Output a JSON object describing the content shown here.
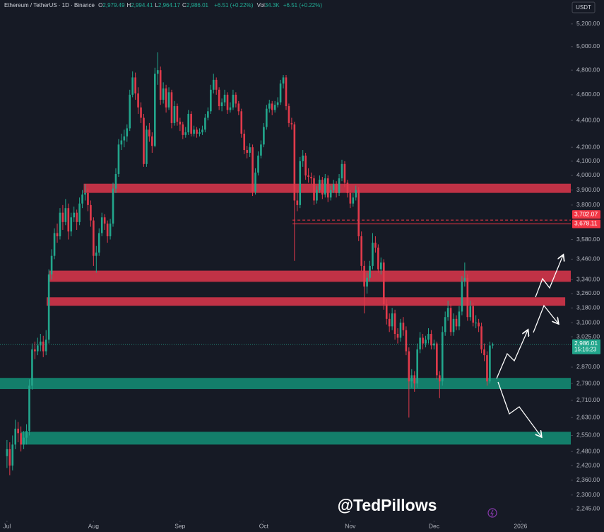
{
  "chart_data": {
    "type": "candlestick",
    "header": {
      "symbol": "Ethereum / TetherUS · 1D · Binance",
      "fields": [
        {
          "key": "O",
          "value": "2,979.49"
        },
        {
          "key": "H",
          "value": "2,994.41"
        },
        {
          "key": "L",
          "value": "2,964.17"
        },
        {
          "key": "C",
          "value": "2,986.01"
        }
      ],
      "change": "+6.51 (+0.22%)",
      "volume": {
        "key": "Vol",
        "value": "34.3K"
      },
      "volume_change": "+6.51 (+0.22%)"
    },
    "currency": "USDT",
    "watermark": "@TedPillows",
    "countdown": "15:16:23",
    "last_label": "2,986.01",
    "log_scale": true,
    "grid": false,
    "up_color": "#22a68c",
    "down_color": "#e13a4b",
    "xlim": [
      -2.5,
      202
    ],
    "xticks": [
      {
        "value": 0,
        "label": "Jul"
      },
      {
        "value": 31,
        "label": "Aug"
      },
      {
        "value": 62,
        "label": "Sep"
      },
      {
        "value": 92,
        "label": "Oct"
      },
      {
        "value": 123,
        "label": "Nov"
      },
      {
        "value": 153,
        "label": "Dec"
      },
      {
        "value": 184,
        "label": "2026"
      }
    ],
    "ylim": [
      2200,
      5420
    ],
    "yticks": [
      {
        "value": 5200,
        "label": "5,200.00"
      },
      {
        "value": 5000,
        "label": "5,000.00"
      },
      {
        "value": 4800,
        "label": "4,800.00"
      },
      {
        "value": 4600,
        "label": "4,600.00"
      },
      {
        "value": 4400,
        "label": "4,400.00"
      },
      {
        "value": 4200,
        "label": "4,200.00"
      },
      {
        "value": 4100,
        "label": "4,100.00"
      },
      {
        "value": 4000,
        "label": "4,000.00"
      },
      {
        "value": 3900,
        "label": "3,900.00"
      },
      {
        "value": 3800,
        "label": "3,800.00"
      },
      {
        "value": 3580,
        "label": "3,580.00"
      },
      {
        "value": 3460,
        "label": "3,460.00"
      },
      {
        "value": 3340,
        "label": "3,340.00"
      },
      {
        "value": 3260,
        "label": "3,260.00"
      },
      {
        "value": 3180,
        "label": "3,180.00"
      },
      {
        "value": 3100,
        "label": "3,100.00"
      },
      {
        "value": 3025,
        "label": "3,025.00"
      },
      {
        "value": 2870,
        "label": "2,870.00"
      },
      {
        "value": 2790,
        "label": "2,790.00"
      },
      {
        "value": 2710,
        "label": "2,710.00"
      },
      {
        "value": 2630,
        "label": "2,630.00"
      },
      {
        "value": 2550,
        "label": "2,550.00"
      },
      {
        "value": 2480,
        "label": "2,480.00"
      },
      {
        "value": 2420,
        "label": "2,420.00"
      },
      {
        "value": 2360,
        "label": "2,360.00"
      },
      {
        "value": 2300,
        "label": "2,300.00"
      },
      {
        "value": 2245,
        "label": "2,245.00"
      }
    ],
    "zones": [
      {
        "low": 3881,
        "high": 3943,
        "from": 27.5,
        "to": 202,
        "color": "#d3354a"
      },
      {
        "low": 3327,
        "high": 3392,
        "from": 15.2,
        "to": 202,
        "color": "#d3354a"
      },
      {
        "low": 3192,
        "high": 3239,
        "from": 14.2,
        "to": 200,
        "color": "#d3354a"
      },
      {
        "low": 2763,
        "high": 2817,
        "from": -2.5,
        "to": 202,
        "color": "#138a72"
      },
      {
        "low": 2510,
        "high": 2566,
        "from": 5,
        "to": 202,
        "color": "#138a72"
      }
    ],
    "levels": [
      {
        "value": 3702.07,
        "label": "3,702.07",
        "style": "dashed",
        "from": 102.3,
        "to": 202,
        "color": "#f23645"
      },
      {
        "value": 3678.11,
        "label": "3,678.11",
        "style": "solid",
        "from": 102.3,
        "to": 202,
        "color": "#f23645"
      }
    ],
    "candles": [
      [
        2460,
        2530,
        2410,
        2490
      ],
      [
        2490,
        2520,
        2380,
        2420
      ],
      [
        2420,
        2550,
        2400,
        2510
      ],
      [
        2510,
        2620,
        2490,
        2580
      ],
      [
        2580,
        2610,
        2520,
        2560
      ],
      [
        2560,
        2590,
        2480,
        2510
      ],
      [
        2510,
        2570,
        2490,
        2540
      ],
      [
        2540,
        2600,
        2510,
        2570
      ],
      [
        2570,
        2810,
        2550,
        2780
      ],
      [
        2780,
        2990,
        2760,
        2960
      ],
      [
        2960,
        3000,
        2910,
        2950
      ],
      [
        2950,
        3020,
        2930,
        2980
      ],
      [
        2980,
        3040,
        2950,
        3000
      ],
      [
        3000,
        3030,
        2920,
        2950
      ],
      [
        2950,
        3060,
        2930,
        3010
      ],
      [
        3010,
        3400,
        2990,
        3370
      ],
      [
        3370,
        3520,
        3340,
        3480
      ],
      [
        3480,
        3650,
        3460,
        3620
      ],
      [
        3620,
        3680,
        3560,
        3600
      ],
      [
        3600,
        3780,
        3580,
        3750
      ],
      [
        3750,
        3800,
        3640,
        3690
      ],
      [
        3690,
        3840,
        3670,
        3780
      ],
      [
        3780,
        3810,
        3580,
        3630
      ],
      [
        3630,
        3750,
        3600,
        3720
      ],
      [
        3720,
        3790,
        3690,
        3750
      ],
      [
        3750,
        3770,
        3640,
        3690
      ],
      [
        3690,
        3850,
        3670,
        3810
      ],
      [
        3810,
        3900,
        3780,
        3870
      ],
      [
        3870,
        3940,
        3830,
        3880
      ],
      [
        3880,
        3910,
        3760,
        3800
      ],
      [
        3800,
        3830,
        3660,
        3700
      ],
      [
        3700,
        3720,
        3420,
        3480
      ],
      [
        3480,
        3540,
        3380,
        3500
      ],
      [
        3500,
        3650,
        3480,
        3620
      ],
      [
        3620,
        3750,
        3600,
        3720
      ],
      [
        3720,
        3740,
        3640,
        3680
      ],
      [
        3680,
        3700,
        3560,
        3600
      ],
      [
        3600,
        3710,
        3580,
        3680
      ],
      [
        3680,
        3950,
        3660,
        3910
      ],
      [
        3910,
        4050,
        3880,
        4010
      ],
      [
        4010,
        4260,
        3990,
        4220
      ],
      [
        4220,
        4300,
        4180,
        4250
      ],
      [
        4250,
        4330,
        4200,
        4280
      ],
      [
        4280,
        4370,
        4240,
        4340
      ],
      [
        4340,
        4640,
        4320,
        4600
      ],
      [
        4600,
        4790,
        4580,
        4740
      ],
      [
        4740,
        4780,
        4560,
        4610
      ],
      [
        4610,
        4660,
        4450,
        4500
      ],
      [
        4500,
        4540,
        4380,
        4420
      ],
      [
        4420,
        4450,
        4060,
        4080
      ],
      [
        4080,
        4360,
        4060,
        4330
      ],
      [
        4330,
        4380,
        4240,
        4280
      ],
      [
        4280,
        4310,
        4160,
        4210
      ],
      [
        4210,
        4820,
        4200,
        4770
      ],
      [
        4770,
        4950,
        4680,
        4800
      ],
      [
        4800,
        4830,
        4520,
        4560
      ],
      [
        4560,
        4700,
        4530,
        4650
      ],
      [
        4650,
        4680,
        4460,
        4500
      ],
      [
        4500,
        4660,
        4480,
        4620
      ],
      [
        4620,
        4640,
        4340,
        4380
      ],
      [
        4380,
        4550,
        4360,
        4510
      ],
      [
        4510,
        4530,
        4360,
        4390
      ],
      [
        4390,
        4420,
        4320,
        4370
      ],
      [
        4370,
        4390,
        4260,
        4290
      ],
      [
        4290,
        4350,
        4270,
        4310
      ],
      [
        4310,
        4480,
        4290,
        4450
      ],
      [
        4450,
        4470,
        4280,
        4300
      ],
      [
        4300,
        4360,
        4280,
        4330
      ],
      [
        4330,
        4350,
        4270,
        4300
      ],
      [
        4300,
        4340,
        4280,
        4310
      ],
      [
        4310,
        4360,
        4290,
        4330
      ],
      [
        4330,
        4450,
        4310,
        4420
      ],
      [
        4420,
        4500,
        4400,
        4470
      ],
      [
        4470,
        4680,
        4450,
        4640
      ],
      [
        4640,
        4770,
        4610,
        4720
      ],
      [
        4720,
        4740,
        4600,
        4640
      ],
      [
        4640,
        4660,
        4480,
        4510
      ],
      [
        4510,
        4570,
        4470,
        4540
      ],
      [
        4540,
        4640,
        4510,
        4600
      ],
      [
        4600,
        4620,
        4450,
        4480
      ],
      [
        4480,
        4540,
        4460,
        4500
      ],
      [
        4500,
        4640,
        4480,
        4600
      ],
      [
        4600,
        4620,
        4500,
        4530
      ],
      [
        4530,
        4550,
        4440,
        4470
      ],
      [
        4470,
        4490,
        4270,
        4300
      ],
      [
        4300,
        4330,
        4150,
        4180
      ],
      [
        4180,
        4210,
        4120,
        4160
      ],
      [
        4160,
        4230,
        4130,
        4200
      ],
      [
        4200,
        4220,
        3860,
        3890
      ],
      [
        3890,
        4050,
        3870,
        4020
      ],
      [
        4020,
        4170,
        4000,
        4140
      ],
      [
        4140,
        4250,
        4120,
        4220
      ],
      [
        4220,
        4380,
        4200,
        4350
      ],
      [
        4350,
        4520,
        4330,
        4490
      ],
      [
        4490,
        4560,
        4460,
        4530
      ],
      [
        4530,
        4550,
        4440,
        4480
      ],
      [
        4480,
        4550,
        4460,
        4520
      ],
      [
        4520,
        4580,
        4500,
        4540
      ],
      [
        4540,
        4720,
        4520,
        4690
      ],
      [
        4690,
        4760,
        4650,
        4740
      ],
      [
        4740,
        4760,
        4480,
        4510
      ],
      [
        4510,
        4530,
        4350,
        4380
      ],
      [
        4380,
        4420,
        4330,
        4370
      ],
      [
        4370,
        4390,
        3450,
        3830
      ],
      [
        3830,
        3900,
        3760,
        3800
      ],
      [
        3800,
        4130,
        3780,
        4100
      ],
      [
        4100,
        4180,
        4060,
        4140
      ],
      [
        4140,
        4160,
        3970,
        4000
      ],
      [
        4000,
        4050,
        3950,
        3990
      ],
      [
        3990,
        4020,
        3940,
        3980
      ],
      [
        3980,
        4000,
        3800,
        3830
      ],
      [
        3830,
        3930,
        3810,
        3900
      ],
      [
        3900,
        4000,
        3880,
        3970
      ],
      [
        3970,
        3990,
        3840,
        3870
      ],
      [
        3870,
        4010,
        3850,
        3980
      ],
      [
        3980,
        4000,
        3820,
        3850
      ],
      [
        3850,
        3930,
        3830,
        3900
      ],
      [
        3900,
        3970,
        3880,
        3940
      ],
      [
        3940,
        3960,
        3850,
        3880
      ],
      [
        3880,
        4010,
        3860,
        3980
      ],
      [
        3980,
        4110,
        3960,
        4080
      ],
      [
        4080,
        4100,
        3920,
        3950
      ],
      [
        3950,
        3970,
        3850,
        3880
      ],
      [
        3880,
        3900,
        3780,
        3810
      ],
      [
        3810,
        3880,
        3790,
        3850
      ],
      [
        3850,
        3930,
        3830,
        3900
      ],
      [
        3900,
        3920,
        3570,
        3600
      ],
      [
        3600,
        3630,
        3390,
        3420
      ],
      [
        3420,
        3450,
        3150,
        3300
      ],
      [
        3300,
        3380,
        3260,
        3350
      ],
      [
        3350,
        3450,
        3330,
        3420
      ],
      [
        3420,
        3620,
        3400,
        3560
      ],
      [
        3560,
        3600,
        3500,
        3530
      ],
      [
        3530,
        3550,
        3380,
        3400
      ],
      [
        3400,
        3470,
        3370,
        3440
      ],
      [
        3440,
        3460,
        3170,
        3200
      ],
      [
        3200,
        3230,
        3090,
        3120
      ],
      [
        3120,
        3150,
        3050,
        3080
      ],
      [
        3080,
        3180,
        3060,
        3150
      ],
      [
        3150,
        3170,
        3010,
        3040
      ],
      [
        3040,
        3070,
        2990,
        3020
      ],
      [
        3020,
        3120,
        3000,
        3100
      ],
      [
        3100,
        3130,
        3030,
        3060
      ],
      [
        3060,
        3080,
        2930,
        2950
      ],
      [
        2950,
        2970,
        2630,
        2800
      ],
      [
        2800,
        2860,
        2770,
        2830
      ],
      [
        2830,
        2850,
        2750,
        2790
      ],
      [
        2790,
        2990,
        2770,
        2960
      ],
      [
        2960,
        3050,
        2940,
        3020
      ],
      [
        3020,
        3040,
        2960,
        2990
      ],
      [
        2990,
        3030,
        2970,
        3010
      ],
      [
        3010,
        3070,
        2990,
        3040
      ],
      [
        3040,
        3060,
        2960,
        2980
      ],
      [
        2980,
        3010,
        2960,
        2990
      ],
      [
        2990,
        3000,
        2810,
        2830
      ],
      [
        2830,
        2850,
        2720,
        2800
      ],
      [
        2800,
        3080,
        2780,
        3050
      ],
      [
        3050,
        3160,
        3030,
        3130
      ],
      [
        3130,
        3220,
        3110,
        3180
      ],
      [
        3180,
        3200,
        3030,
        3050
      ],
      [
        3050,
        3150,
        3030,
        3120
      ],
      [
        3120,
        3140,
        3060,
        3080
      ],
      [
        3080,
        3190,
        3060,
        3160
      ],
      [
        3160,
        3360,
        3140,
        3330
      ],
      [
        3330,
        3440,
        3300,
        3350
      ],
      [
        3350,
        3370,
        3110,
        3130
      ],
      [
        3130,
        3220,
        3110,
        3190
      ],
      [
        3190,
        3210,
        3080,
        3100
      ],
      [
        3100,
        3140,
        3070,
        3100
      ],
      [
        3100,
        3120,
        3050,
        3080
      ],
      [
        3080,
        3100,
        2940,
        2960
      ],
      [
        2960,
        2990,
        2900,
        2930
      ],
      [
        2930,
        2950,
        2780,
        2800
      ],
      [
        2800,
        3000,
        2790,
        2979.5
      ],
      [
        2979.49,
        2994.41,
        2964.17,
        2986.01
      ]
    ]
  }
}
